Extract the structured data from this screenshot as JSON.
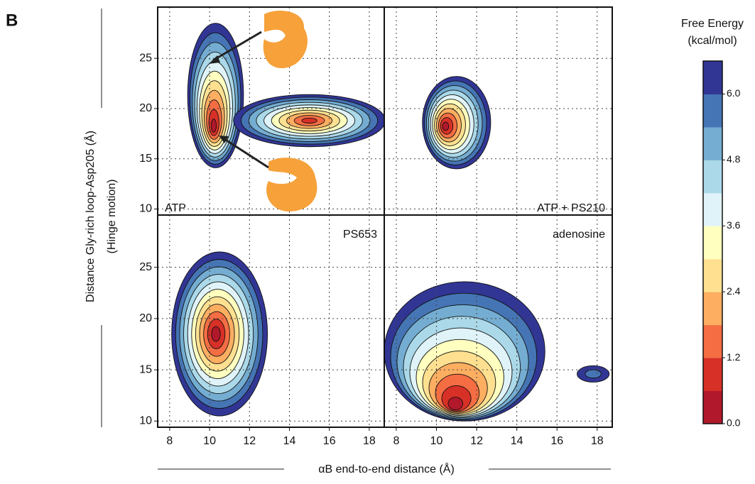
{
  "chart_data": {
    "type": "contour",
    "panel_label": "B",
    "panels": [
      "ATP",
      "ATP + PS210",
      "PS653",
      "adenosine"
    ],
    "x_label": "αB end-to-end distance (Å)",
    "y_label": [
      "Distance Gly-rich loop-Asp205 (Å)",
      "(Hinge motion)"
    ],
    "xlim": [
      7.4,
      18.75
    ],
    "xticks": [
      8,
      10,
      12,
      14,
      16,
      18
    ],
    "ylim": [
      9.4,
      30.1
    ],
    "yticks": [
      10,
      15,
      20,
      25
    ],
    "grid": true,
    "colorbar": {
      "title": [
        "Free Energy",
        "(kcal/mol)"
      ],
      "lim": [
        0,
        6.6
      ],
      "ticks": [
        {
          "value": 0,
          "label": "0.0"
        },
        1.2,
        2.4,
        3.6,
        4.8,
        {
          "value": 6,
          "label": "6.0"
        }
      ],
      "colors": [
        "#b2182b",
        "#d73027",
        "#f46d43",
        "#fdae61",
        "#fee090",
        "#ffffbf",
        "#e0f3f8",
        "#abd9e9",
        "#74add1",
        "#4575b4",
        "#313695"
      ]
    }
  }
}
